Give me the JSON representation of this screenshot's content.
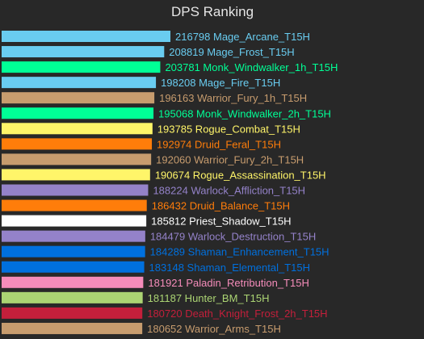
{
  "chart_data": {
    "type": "bar",
    "orientation": "horizontal",
    "title": "DPS Ranking",
    "xlabel": "",
    "ylabel": "",
    "grid": false,
    "legend": "none",
    "xlim": [
      0,
      216798
    ],
    "background": "#282828",
    "bars": [
      {
        "value": 216798,
        "name": "Mage_Arcane_T15H",
        "color": "#69ccf0"
      },
      {
        "value": 208819,
        "name": "Mage_Frost_T15H",
        "color": "#69ccf0"
      },
      {
        "value": 203781,
        "name": "Monk_Windwalker_1h_T15H",
        "color": "#00ff96"
      },
      {
        "value": 198208,
        "name": "Mage_Fire_T15H",
        "color": "#69ccf0"
      },
      {
        "value": 196163,
        "name": "Warrior_Fury_1h_T15H",
        "color": "#c79c6e"
      },
      {
        "value": 195068,
        "name": "Monk_Windwalker_2h_T15H",
        "color": "#00ff96"
      },
      {
        "value": 193785,
        "name": "Rogue_Combat_T15H",
        "color": "#fff569"
      },
      {
        "value": 192974,
        "name": "Druid_Feral_T15H",
        "color": "#ff7d0a"
      },
      {
        "value": 192060,
        "name": "Warrior_Fury_2h_T15H",
        "color": "#c79c6e"
      },
      {
        "value": 190674,
        "name": "Rogue_Assassination_T15H",
        "color": "#fff569"
      },
      {
        "value": 188224,
        "name": "Warlock_Affliction_T15H",
        "color": "#9482c9"
      },
      {
        "value": 186432,
        "name": "Druid_Balance_T15H",
        "color": "#ff7d0a"
      },
      {
        "value": 185812,
        "name": "Priest_Shadow_T15H",
        "color": "#ffffff"
      },
      {
        "value": 184479,
        "name": "Warlock_Destruction_T15H",
        "color": "#9482c9"
      },
      {
        "value": 184289,
        "name": "Shaman_Enhancement_T15H",
        "color": "#0070de"
      },
      {
        "value": 183148,
        "name": "Shaman_Elemental_T15H",
        "color": "#0070de"
      },
      {
        "value": 181921,
        "name": "Paladin_Retribution_T15H",
        "color": "#f58cba"
      },
      {
        "value": 181187,
        "name": "Hunter_BM_T15H",
        "color": "#abd473"
      },
      {
        "value": 180720,
        "name": "Death_Knight_Frost_2h_T15H",
        "color": "#c41f3b"
      },
      {
        "value": 180652,
        "name": "Warrior_Arms_T15H",
        "color": "#c79c6e"
      }
    ]
  }
}
